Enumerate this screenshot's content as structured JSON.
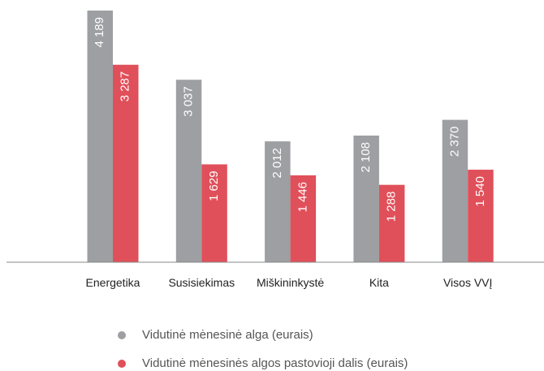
{
  "chart_data": {
    "type": "bar",
    "categories": [
      "Energetika",
      "Susisiekimas",
      "Miškininkystė",
      "Kita",
      "Visos VVĮ"
    ],
    "series": [
      {
        "name": "Vidutinė mėnesinė alga (eurais)",
        "color": "#9d9fa2",
        "values": [
          4189,
          3037,
          2012,
          2108,
          2370
        ],
        "value_labels": [
          "4 189",
          "3 037",
          "2 012",
          "2 108",
          "2 370"
        ]
      },
      {
        "name": "Vidutinė mėnesinės algos pastovioji dalis (eurais)",
        "color": "#e0505a",
        "values": [
          3287,
          1629,
          1446,
          1288,
          1540
        ],
        "value_labels": [
          "3 287",
          "1 629",
          "1 446",
          "1 288",
          "1 540"
        ]
      }
    ]
  }
}
